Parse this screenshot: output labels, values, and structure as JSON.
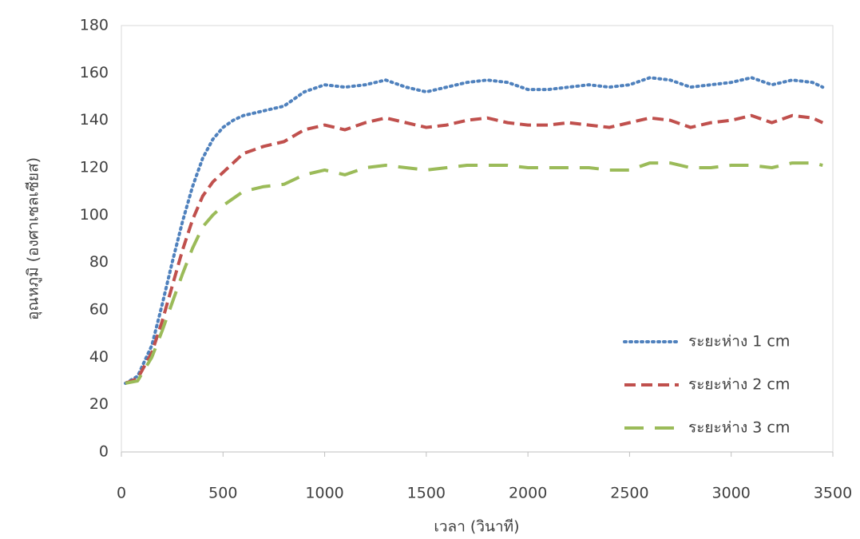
{
  "chart_data": {
    "type": "line",
    "x_label": "เวลา (วินาที)",
    "y_label": "อุณหภูมิ (องศาเซลเซียส)",
    "x": [
      20,
      80,
      150,
      200,
      250,
      300,
      350,
      400,
      450,
      500,
      550,
      600,
      700,
      800,
      900,
      1000,
      1100,
      1200,
      1300,
      1400,
      1500,
      1600,
      1700,
      1800,
      1900,
      2000,
      2100,
      2200,
      2300,
      2400,
      2500,
      2600,
      2700,
      2800,
      2900,
      3000,
      3100,
      3200,
      3300,
      3400,
      3450
    ],
    "series": [
      {
        "name": "ระยะห่าง 1 cm",
        "color": "#4f81bd",
        "line_style": "dotted",
        "values": [
          29,
          32,
          45,
          62,
          80,
          97,
          112,
          124,
          132,
          137,
          140,
          142,
          144,
          146,
          152,
          155,
          154,
          155,
          157,
          154,
          152,
          154,
          156,
          157,
          156,
          153,
          153,
          154,
          155,
          154,
          155,
          158,
          157,
          154,
          155,
          156,
          158,
          155,
          157,
          156,
          154
        ]
      },
      {
        "name": "ระยะห่าง 2 cm",
        "color": "#c0504d",
        "line_style": "dashed",
        "values": [
          29,
          31,
          42,
          55,
          70,
          85,
          98,
          108,
          114,
          118,
          122,
          126,
          129,
          131,
          136,
          138,
          136,
          139,
          141,
          139,
          137,
          138,
          140,
          141,
          139,
          138,
          138,
          139,
          138,
          137,
          139,
          141,
          140,
          137,
          139,
          140,
          142,
          139,
          142,
          141,
          139
        ]
      },
      {
        "name": "ระยะห่าง 3 cm",
        "color": "#9bbb59",
        "line_style": "long-dashed",
        "values": [
          29,
          30,
          40,
          51,
          63,
          75,
          86,
          95,
          100,
          104,
          107,
          110,
          112,
          113,
          117,
          119,
          117,
          120,
          121,
          120,
          119,
          120,
          121,
          121,
          121,
          120,
          120,
          120,
          120,
          119,
          119,
          122,
          122,
          120,
          120,
          121,
          121,
          120,
          122,
          122,
          121
        ]
      }
    ],
    "xlim": [
      0,
      3500
    ],
    "xticks": [
      0,
      500,
      1000,
      1500,
      2000,
      2500,
      3000,
      3500
    ],
    "ylim": [
      0,
      180
    ],
    "yticks": [
      0,
      20,
      40,
      60,
      80,
      100,
      120,
      140,
      160,
      180
    ],
    "legend": "lower right"
  }
}
